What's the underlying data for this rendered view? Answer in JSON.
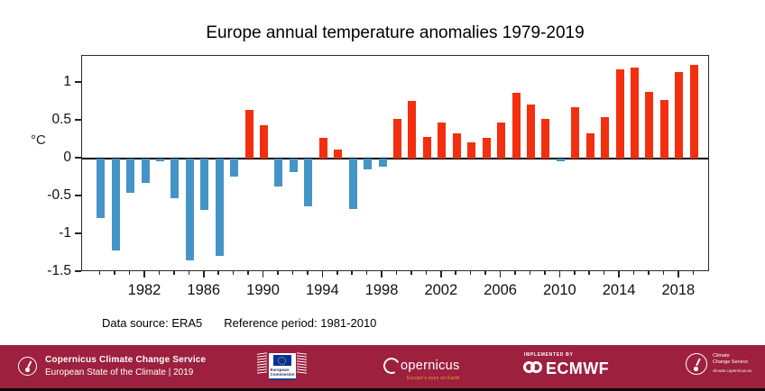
{
  "title": "Europe annual temperature anomalies 1979-2019",
  "caption": {
    "data_source": "Data source: ERA5",
    "reference_period": "Reference period: 1981-2010"
  },
  "chart_data": {
    "type": "bar",
    "title": "Europe annual temperature anomalies 1979-2019",
    "xlabel": "",
    "ylabel": "°C",
    "x": [
      1979,
      1980,
      1981,
      1982,
      1983,
      1984,
      1985,
      1986,
      1987,
      1988,
      1989,
      1990,
      1991,
      1992,
      1993,
      1994,
      1995,
      1996,
      1997,
      1998,
      1999,
      2000,
      2001,
      2002,
      2003,
      2004,
      2005,
      2006,
      2007,
      2008,
      2009,
      2010,
      2011,
      2012,
      2013,
      2014,
      2015,
      2016,
      2017,
      2018,
      2019
    ],
    "values": [
      -0.78,
      -1.21,
      -0.45,
      -0.32,
      -0.04,
      -0.52,
      -1.35,
      -0.68,
      -1.29,
      -0.24,
      0.64,
      0.44,
      -0.37,
      -0.18,
      -0.63,
      0.28,
      0.12,
      -0.67,
      -0.14,
      -0.11,
      0.53,
      0.76,
      0.29,
      0.48,
      0.33,
      0.22,
      0.28,
      0.48,
      0.87,
      0.72,
      0.52,
      -0.03,
      0.68,
      0.34,
      0.55,
      1.18,
      1.2,
      0.88,
      0.78,
      1.14,
      1.24
    ],
    "ylim": [
      -1.5,
      1.36
    ],
    "yticks": [
      {
        "value": 1,
        "label": "1"
      },
      {
        "value": 0.5,
        "label": "0.5"
      },
      {
        "value": 0,
        "label": "0"
      },
      {
        "value": -0.5,
        "label": "-0.5"
      },
      {
        "value": -1,
        "label": "-1"
      },
      {
        "value": -1.5,
        "label": "-1.5"
      }
    ],
    "xticks": [
      {
        "year": 1982,
        "label": "1982"
      },
      {
        "year": 1986,
        "label": "1986"
      },
      {
        "year": 1990,
        "label": "1990"
      },
      {
        "year": 1994,
        "label": "1994"
      },
      {
        "year": 1998,
        "label": "1998"
      },
      {
        "year": 2002,
        "label": "2002"
      },
      {
        "year": 2006,
        "label": "2006"
      },
      {
        "year": 2010,
        "label": "2010"
      },
      {
        "year": 2014,
        "label": "2014"
      },
      {
        "year": 2018,
        "label": "2018"
      }
    ],
    "positive_color": "#f2300f",
    "negative_color": "#4594c7",
    "grid": false,
    "legend": null
  },
  "footer": {
    "background_color": "#9d203f",
    "c3s": {
      "line1": "Copernicus Climate Change Service",
      "line2": "European State of the Climate | 2019"
    },
    "european_commission": {
      "line1": "European",
      "line2": "Commission"
    },
    "copernicus": {
      "wordmark": "opernicus",
      "tagline": "Europe's eyes on Earth"
    },
    "ecmwf": {
      "implemented_by": "IMPLEMENTED BY",
      "name": "ECMWF"
    },
    "right": {
      "line1": "Climate",
      "line2": "Change Service",
      "url": "climate.copernicus.eu"
    }
  }
}
